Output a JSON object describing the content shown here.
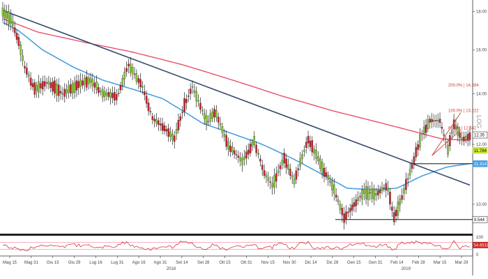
{
  "chart_data": [
    {
      "type": "candlestick",
      "scale": "log",
      "scale_label": "LOG",
      "ylim": [
        9.2,
        18.4
      ],
      "y_ticks": [
        "18.00",
        "16.00",
        "14.00",
        "12.00",
        "10.00"
      ],
      "x_ticks": [
        "Mag 15",
        "Mag 31",
        "Giu 15",
        "Giu 29",
        "Lug 16",
        "Lug 31",
        "Ago 16",
        "Ago 31",
        "Set 14",
        "Set 28",
        "Ott 15",
        "Ott 31",
        "Nov 15",
        "Nov 30",
        "Dic 14",
        "Dic 28",
        "Gen 15",
        "Gen 31",
        "Feb 14",
        "Feb 28",
        "Mar 15",
        "Mar 29"
      ],
      "year_labels": [
        "2018",
        "2019"
      ],
      "grid": false,
      "colors": {
        "up": "#8cc63f",
        "down": "#c0262c",
        "ma_long": "#e8506a",
        "ma_short": "#4a9fe0",
        "trendline": "#34496b",
        "fib": "#d23a3a",
        "price_box": "#c8e53a",
        "ma_box": "#4a9fe0"
      },
      "series": [
        {
          "name": "price",
          "style": "candles",
          "anchors": [
            [
              0,
              18.0
            ],
            [
              8,
              17.6
            ],
            [
              15,
              16.6
            ],
            [
              22,
              15.2
            ],
            [
              32,
              14.2
            ],
            [
              45,
              14.5
            ],
            [
              60,
              14.0
            ],
            [
              72,
              14.3
            ],
            [
              88,
              14.6
            ],
            [
              100,
              14.0
            ],
            [
              115,
              13.9
            ],
            [
              126,
              15.3
            ],
            [
              140,
              14.3
            ],
            [
              150,
              13.0
            ],
            [
              160,
              12.7
            ],
            [
              172,
              12.2
            ],
            [
              182,
              13.5
            ],
            [
              190,
              14.3
            ],
            [
              205,
              12.8
            ],
            [
              213,
              13.3
            ],
            [
              225,
              12.0
            ],
            [
              240,
              11.4
            ],
            [
              252,
              12.1
            ],
            [
              262,
              11.0
            ],
            [
              270,
              10.6
            ],
            [
              282,
              11.5
            ],
            [
              292,
              10.7
            ],
            [
              306,
              12.2
            ],
            [
              318,
              11.3
            ],
            [
              330,
              10.6
            ],
            [
              342,
              9.6
            ],
            [
              350,
              9.9
            ],
            [
              362,
              10.4
            ],
            [
              374,
              10.3
            ],
            [
              385,
              10.6
            ],
            [
              392,
              9.6
            ],
            [
              400,
              10.2
            ],
            [
              408,
              11.0
            ],
            [
              420,
              12.4
            ],
            [
              428,
              12.9
            ],
            [
              438,
              12.9
            ],
            [
              446,
              11.8
            ],
            [
              452,
              12.8
            ],
            [
              460,
              12.2
            ],
            [
              468,
              12.3
            ]
          ]
        },
        {
          "name": "long_ma",
          "style": "line",
          "anchors": [
            [
              0,
              17.6
            ],
            [
              35,
              16.9
            ],
            [
              80,
              16.4
            ],
            [
              130,
              15.9
            ],
            [
              180,
              15.3
            ],
            [
              230,
              14.6
            ],
            [
              280,
              13.9
            ],
            [
              330,
              13.3
            ],
            [
              380,
              12.8
            ],
            [
              420,
              12.4
            ],
            [
              440,
              12.2
            ],
            [
              468,
              12.15
            ]
          ]
        },
        {
          "name": "short_ma",
          "style": "line",
          "anchors": [
            [
              0,
              17.4
            ],
            [
              15,
              17.0
            ],
            [
              40,
              16.0
            ],
            [
              70,
              15.2
            ],
            [
              100,
              14.6
            ],
            [
              130,
              14.2
            ],
            [
              160,
              13.8
            ],
            [
              180,
              13.3
            ],
            [
              200,
              12.8
            ],
            [
              230,
              12.4
            ],
            [
              260,
              12.0
            ],
            [
              290,
              11.5
            ],
            [
              320,
              10.95
            ],
            [
              345,
              10.5
            ],
            [
              370,
              10.45
            ],
            [
              395,
              10.5
            ],
            [
              420,
              10.9
            ],
            [
              445,
              11.2
            ],
            [
              468,
              11.32
            ]
          ]
        }
      ],
      "trendline": {
        "from": [
          0,
          18.05
        ],
        "to": [
          468,
          10.6
        ]
      },
      "fib_levels": [
        {
          "label": "200.0% | 14.284",
          "value": 14.284
        },
        {
          "label": "100.0% | 13.222",
          "value": 13.222
        },
        {
          "label": "61.8% | 12.541",
          "value": 12.541
        }
      ],
      "price_labels": [
        {
          "label": "12.35",
          "value": 12.35,
          "style": "plain"
        },
        {
          "label": "11.784",
          "value": 11.784,
          "style": "price"
        },
        {
          "label": "11.314",
          "value": 11.314,
          "style": "ma"
        },
        {
          "label": "9.544",
          "value": 9.544,
          "style": "plain"
        }
      ],
      "support_lines": [
        {
          "value": 9.544
        },
        {
          "value": 11.314
        }
      ]
    },
    {
      "type": "line",
      "ylim": [
        0,
        100
      ],
      "y_ticks": [
        "100",
        "50",
        "0"
      ],
      "levels": [
        70,
        30
      ],
      "last_label": "54.6531",
      "colors": {
        "line": "#cc2222",
        "box": "#cc2222"
      }
    }
  ]
}
